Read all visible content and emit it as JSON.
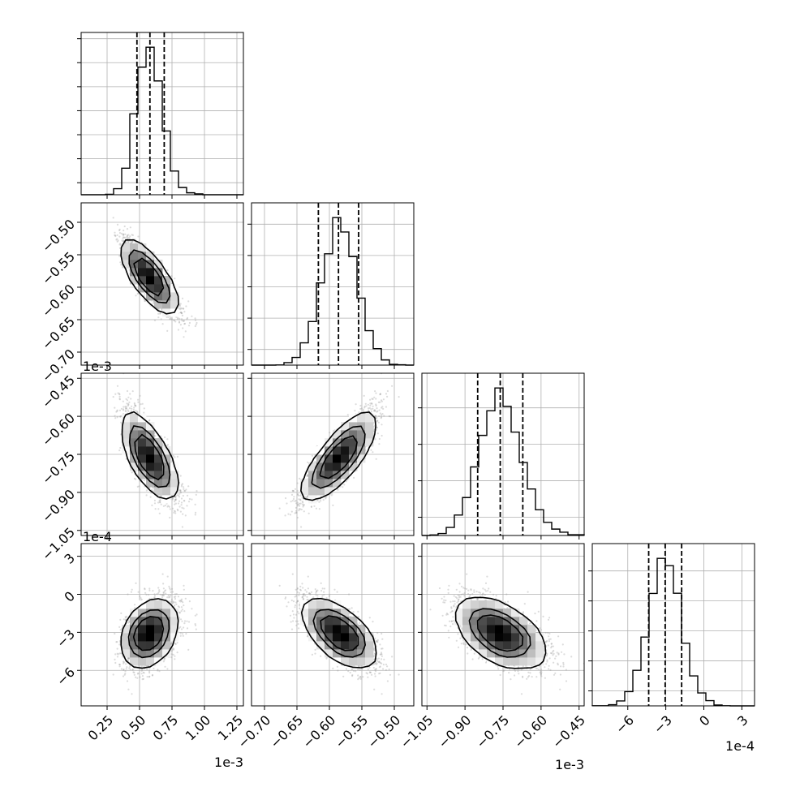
{
  "chart_data": {
    "type": "corner",
    "grid": true,
    "hist_color": "#000000",
    "contour_color": "#000000",
    "scatter_color": "#9a9a9a",
    "quantile_style": "dashed",
    "quantile_levels": [
      0.16,
      0.5,
      0.84
    ],
    "scale_labels": [
      "1e-3",
      "1e-3",
      "1e-3",
      "1e-4"
    ],
    "params": [
      {
        "lim": [
          0.05,
          1.3
        ],
        "ticks": [
          0.25,
          0.5,
          0.75,
          1.0,
          1.25
        ],
        "tick_labels": [
          "0.25",
          "0.50",
          "0.75",
          "1.00",
          "1.25"
        ],
        "mean": 0.58,
        "sd": 0.1,
        "skew": 0.5,
        "quantiles": [
          0.48,
          0.58,
          0.69
        ]
      },
      {
        "lim": [
          -0.72,
          -0.47
        ],
        "ticks": [
          -0.7,
          -0.65,
          -0.6,
          -0.55,
          -0.5
        ],
        "tick_labels": [
          "−0.70",
          "−0.65",
          "−0.60",
          "−0.55",
          "−0.50"
        ],
        "mean": -0.585,
        "sd": 0.027,
        "skew": 0,
        "quantiles": [
          -0.617,
          -0.586,
          -0.555
        ]
      },
      {
        "lim": [
          -1.07,
          -0.43
        ],
        "ticks": [
          -1.05,
          -0.9,
          -0.75,
          -0.6,
          -0.45
        ],
        "tick_labels": [
          "−1.05",
          "−0.90",
          "−0.75",
          "−0.60",
          "−0.45"
        ],
        "mean": -0.76,
        "sd": 0.083,
        "skew": 0.3,
        "quantiles": [
          -0.85,
          -0.761,
          -0.672
        ]
      },
      {
        "lim": [
          -8.8,
          4.0
        ],
        "ticks": [
          -6,
          -3,
          0,
          3
        ],
        "tick_labels": [
          "−6",
          "−3",
          "0",
          "3"
        ],
        "mean": -3.1,
        "sd": 1.3,
        "skew": 0,
        "quantiles": [
          -4.35,
          -3.05,
          -1.75
        ]
      }
    ],
    "correlations": [
      [
        1,
        -0.85,
        -0.75,
        0.35
      ],
      [
        -0.85,
        1,
        0.85,
        -0.65
      ],
      [
        -0.75,
        0.85,
        1,
        -0.55
      ],
      [
        0.35,
        -0.65,
        -0.55,
        1
      ]
    ]
  }
}
